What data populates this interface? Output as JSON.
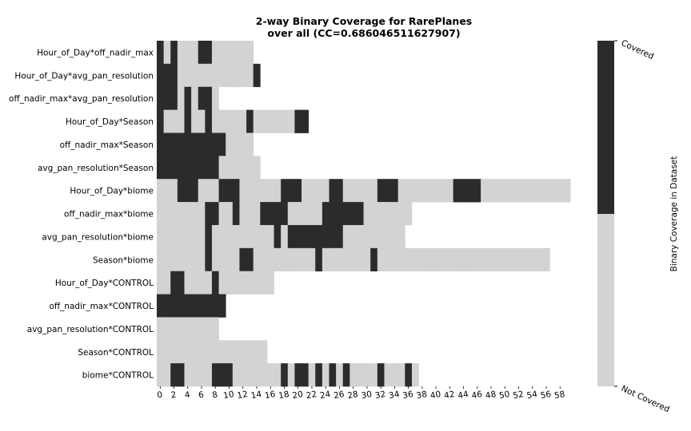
{
  "chart_data": {
    "type": "heatmap",
    "title_line1": "2-way Binary Coverage for RarePlanes",
    "title_line2": "over all (CC=0.686046511627907)",
    "colorbar": {
      "label": "Binary Coverage in Dataset",
      "ticks": [
        "Covered",
        "Not Covered"
      ],
      "covered_color": "#2b2b2b",
      "not_covered_color": "#d3d3d3"
    },
    "x_ticks": [
      0,
      2,
      4,
      6,
      8,
      10,
      12,
      14,
      16,
      18,
      20,
      22,
      24,
      26,
      28,
      30,
      32,
      34,
      36,
      38,
      40,
      42,
      44,
      46,
      48,
      50,
      52,
      54,
      56,
      58
    ],
    "rows": [
      {
        "label": "Hour_of_Day*off_nadir_max",
        "cells": "01011100111111"
      },
      {
        "label": "Hour_of_Day*avg_pan_resolution",
        "cells": "000111111111110"
      },
      {
        "label": "off_nadir_max*avg_pan_resolution",
        "cells": "000101001"
      },
      {
        "label": "Hour_of_Day*Season",
        "cells": "0111011011111011111100"
      },
      {
        "label": "off_nadir_max*Season",
        "cells": "00000000001111"
      },
      {
        "label": "avg_pan_resolution*Season",
        "cells": "000000000111111"
      },
      {
        "label": "Hour_of_Day*biome",
        "cells": "111000111000111111000111100111110001111111100001111111111111"
      },
      {
        "label": "off_nadir_max*biome",
        "cells": "1111111001101110000111110000001111111"
      },
      {
        "label": "avg_pan_resolution*biome",
        "cells": "111111101111111110100000000111111111"
      },
      {
        "label": "Season*biome",
        "cells": "111111101111001111111110111111101111111111111111111111111"
      },
      {
        "label": "Hour_of_Day*CONTROL",
        "cells": "11001111011111111"
      },
      {
        "label": "off_nadir_max*CONTROL",
        "cells": "0000000000"
      },
      {
        "label": "avg_pan_resolution*CONTROL",
        "cells": "111111111"
      },
      {
        "label": "Season*CONTROL",
        "cells": "1111111111111111"
      },
      {
        "label": "biome*CONTROL",
        "cells": "11001111000111111101001010101111011101"
      }
    ]
  }
}
